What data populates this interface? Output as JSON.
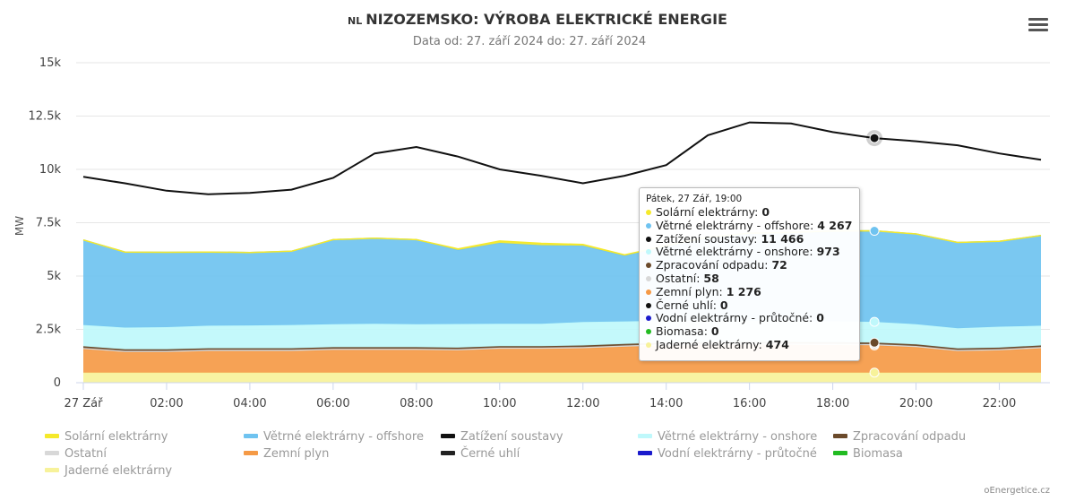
{
  "header": {
    "country_code": "NL",
    "title": "NIZOZEMSKO: VÝROBA ELEKTRICKÉ ENERGIE",
    "subtitle": "Data od: 27. září 2024 do: 27. září 2024"
  },
  "menu_icon": "hamburger-menu-icon",
  "credits": "oEnergetice.cz",
  "tooltip": {
    "header": "Pátek, 27 Zář, 19:00",
    "rows": [
      {
        "label": "Solární elektrárny",
        "value": "0",
        "color": "#f5e92a"
      },
      {
        "label": "Větrné elektrárny - offshore",
        "value": "4 267",
        "color": "#6fc3f0"
      },
      {
        "label": "Zatížení soustavy",
        "value": "11 466",
        "color": "#111111"
      },
      {
        "label": "Větrné elektrárny - onshore",
        "value": "973",
        "color": "#bff8fb"
      },
      {
        "label": "Zpracování odpadu",
        "value": "72",
        "color": "#6b4a2b"
      },
      {
        "label": "Ostatní",
        "value": "58",
        "color": "#d8d8d8"
      },
      {
        "label": "Zemní plyn",
        "value": "1 276",
        "color": "#f59a46"
      },
      {
        "label": "Černé uhlí",
        "value": "0",
        "color": "#111111"
      },
      {
        "label": "Vodní elektrárny - průtočné",
        "value": "0",
        "color": "#1a1acc"
      },
      {
        "label": "Biomasa",
        "value": "0",
        "color": "#22bb22"
      },
      {
        "label": "Jaderné elektrárny",
        "value": "474",
        "color": "#f7f29a"
      }
    ]
  },
  "chart_data": {
    "type": "area",
    "title": "NIZOZEMSKO: VÝROBA ELEKTRICKÉ ENERGIE",
    "ylabel": "MW",
    "ylim": [
      0,
      15000
    ],
    "yticks": [
      {
        "v": 0,
        "label": "0"
      },
      {
        "v": 2500,
        "label": "2.5k"
      },
      {
        "v": 5000,
        "label": "5k"
      },
      {
        "v": 7500,
        "label": "7.5k"
      },
      {
        "v": 10000,
        "label": "10k"
      },
      {
        "v": 12500,
        "label": "12.5k"
      },
      {
        "v": 15000,
        "label": "15k"
      }
    ],
    "xticks": [
      {
        "h": 0,
        "label": "27 Zář"
      },
      {
        "h": 2,
        "label": "02:00"
      },
      {
        "h": 4,
        "label": "04:00"
      },
      {
        "h": 6,
        "label": "06:00"
      },
      {
        "h": 8,
        "label": "08:00"
      },
      {
        "h": 10,
        "label": "10:00"
      },
      {
        "h": 12,
        "label": "12:00"
      },
      {
        "h": 14,
        "label": "14:00"
      },
      {
        "h": 16,
        "label": "16:00"
      },
      {
        "h": 18,
        "label": "18:00"
      },
      {
        "h": 20,
        "label": "20:00"
      },
      {
        "h": 22,
        "label": "22:00"
      }
    ],
    "x_hours": [
      0,
      1,
      2,
      3,
      4,
      5,
      6,
      7,
      8,
      9,
      10,
      11,
      12,
      13,
      14,
      15,
      16,
      17,
      18,
      19,
      20,
      21,
      22,
      23
    ],
    "stacked_series": [
      {
        "name": "Jaderné elektrárny",
        "color": "#f7f29a",
        "values": [
          474,
          474,
          474,
          474,
          474,
          474,
          474,
          474,
          474,
          474,
          474,
          474,
          474,
          474,
          474,
          474,
          474,
          474,
          474,
          474,
          474,
          474,
          474,
          474
        ]
      },
      {
        "name": "Vodní elektrárny - průtočné",
        "color": "#1a1acc",
        "values": [
          0,
          0,
          0,
          0,
          0,
          0,
          0,
          0,
          0,
          0,
          0,
          0,
          0,
          0,
          0,
          0,
          0,
          0,
          0,
          0,
          0,
          0,
          0,
          0
        ]
      },
      {
        "name": "Biomasa",
        "color": "#22bb22",
        "values": [
          0,
          0,
          0,
          0,
          0,
          0,
          0,
          0,
          0,
          0,
          0,
          0,
          0,
          0,
          0,
          0,
          0,
          0,
          0,
          0,
          0,
          0,
          0,
          0
        ]
      },
      {
        "name": "Černé uhlí",
        "color": "#222222",
        "values": [
          0,
          0,
          0,
          0,
          0,
          0,
          0,
          0,
          0,
          0,
          0,
          0,
          0,
          0,
          0,
          0,
          0,
          0,
          0,
          0,
          0,
          0,
          0,
          0
        ]
      },
      {
        "name": "Zemní plyn",
        "color": "#f59a46",
        "values": [
          1100,
          960,
          960,
          1010,
          1010,
          1010,
          1060,
          1060,
          1060,
          1040,
          1110,
          1110,
          1140,
          1210,
          1270,
          1300,
          1310,
          1300,
          1290,
          1276,
          1190,
          1000,
          1040,
          1140
        ]
      },
      {
        "name": "Ostatní",
        "color": "#d8d8d8",
        "values": [
          58,
          58,
          58,
          58,
          58,
          58,
          58,
          58,
          58,
          58,
          58,
          58,
          58,
          58,
          58,
          58,
          58,
          58,
          58,
          58,
          58,
          58,
          58,
          58
        ]
      },
      {
        "name": "Zpracování odpadu",
        "color": "#6b4a2b",
        "values": [
          72,
          72,
          72,
          72,
          72,
          72,
          72,
          72,
          72,
          72,
          72,
          72,
          72,
          72,
          72,
          72,
          72,
          72,
          72,
          72,
          72,
          72,
          72,
          72
        ]
      },
      {
        "name": "Větrné elektrárny - onshore",
        "color": "#bff8fb",
        "values": [
          1000,
          1020,
          1040,
          1060,
          1070,
          1090,
          1080,
          1100,
          1080,
          1110,
          1050,
          1050,
          1100,
          1060,
          1030,
          1010,
          1000,
          990,
          990,
          973,
          950,
          950,
          980,
          930
        ]
      },
      {
        "name": "Větrné elektrárny - offshore",
        "color": "#6fc3f0",
        "values": [
          3990,
          3540,
          3510,
          3450,
          3420,
          3460,
          3960,
          4010,
          3960,
          3470,
          3790,
          3680,
          3580,
          3080,
          3500,
          3900,
          4100,
          4150,
          4230,
          4267,
          4230,
          4020,
          4000,
          4230
        ]
      },
      {
        "name": "Solární elektrárny",
        "color": "#f5e92a",
        "values": [
          0,
          0,
          0,
          0,
          0,
          0,
          0,
          0,
          0,
          50,
          90,
          90,
          60,
          40,
          20,
          0,
          0,
          0,
          0,
          0,
          0,
          0,
          0,
          0
        ]
      }
    ],
    "line_series": {
      "name": "Zatížení soustavy",
      "color": "#111111",
      "values": [
        9650,
        9350,
        9000,
        8830,
        8900,
        9050,
        9600,
        10750,
        11050,
        10600,
        10000,
        9700,
        9350,
        9700,
        10200,
        11600,
        12200,
        12150,
        11750,
        11466,
        11320,
        11130,
        10750,
        10450
      ]
    },
    "highlight_hour": 19
  },
  "legend": [
    {
      "label": "Solární elektrárny",
      "color": "#f5e92a"
    },
    {
      "label": "Větrné elektrárny - offshore",
      "color": "#6fc3f0"
    },
    {
      "label": "Zatížení soustavy",
      "color": "#111111"
    },
    {
      "label": "Větrné elektrárny - onshore",
      "color": "#bff8fb"
    },
    {
      "label": "Zpracování odpadu",
      "color": "#6b4a2b"
    },
    {
      "label": "Ostatní",
      "color": "#d8d8d8"
    },
    {
      "label": "Zemní plyn",
      "color": "#f59a46"
    },
    {
      "label": "Černé uhlí",
      "color": "#222222"
    },
    {
      "label": "Vodní elektrárny - průtočné",
      "color": "#1a1acc"
    },
    {
      "label": "Biomasa",
      "color": "#22bb22"
    },
    {
      "label": "Jaderné elektrárny",
      "color": "#f7f29a"
    }
  ]
}
